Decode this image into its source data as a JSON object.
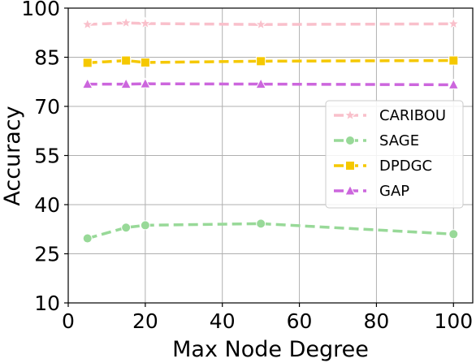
{
  "chart_data": {
    "type": "line",
    "xlabel": "Max Node Degree",
    "ylabel": "Accuracy",
    "xlim": [
      0,
      105
    ],
    "ylim": [
      10,
      100
    ],
    "xticks": [
      0,
      20,
      40,
      60,
      80,
      100
    ],
    "yticks": [
      10,
      25,
      40,
      55,
      70,
      85,
      100
    ],
    "grid": true,
    "legend_position": "center-right",
    "series": [
      {
        "name": "CARIBOU",
        "color": "#f9c0cb",
        "marker": "star",
        "x": [
          5,
          15,
          20,
          50,
          100
        ],
        "y": [
          95,
          95.5,
          95.3,
          95,
          95.2
        ]
      },
      {
        "name": "SAGE",
        "color": "#98d998",
        "marker": "circle",
        "x": [
          5,
          15,
          20,
          50,
          100
        ],
        "y": [
          29.7,
          33,
          33.7,
          34.2,
          31
        ]
      },
      {
        "name": "DPDGC",
        "color": "#f5c800",
        "marker": "square",
        "x": [
          5,
          15,
          20,
          50,
          100
        ],
        "y": [
          83.3,
          84,
          83.4,
          83.8,
          84
        ]
      },
      {
        "name": "GAP",
        "color": "#cc66dd",
        "marker": "triangle",
        "x": [
          5,
          15,
          20,
          50,
          100
        ],
        "y": [
          76.8,
          76.8,
          76.9,
          76.8,
          76.6
        ]
      }
    ]
  }
}
